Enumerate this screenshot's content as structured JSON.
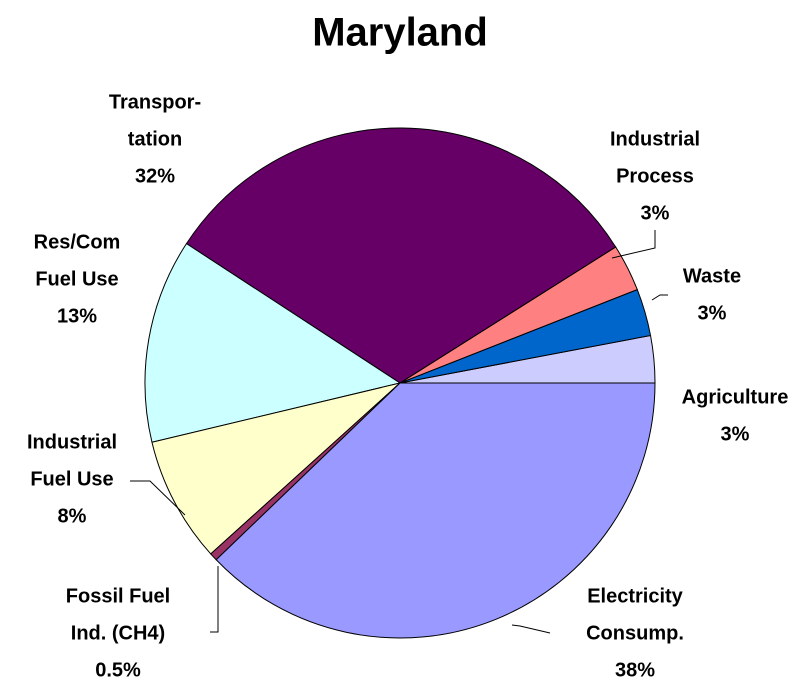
{
  "chart_data": {
    "type": "pie",
    "title": "Maryland",
    "categories": [
      [
        "Agriculture"
      ],
      [
        "Waste"
      ],
      [
        "Industrial",
        "Process"
      ],
      [
        "Transpor-",
        "tation"
      ],
      [
        "Res/Com",
        "Fuel Use"
      ],
      [
        "Industrial",
        "Fuel Use"
      ],
      [
        "Fossil Fuel",
        "Ind. (CH4)"
      ],
      [
        "Electricity",
        "Consump."
      ]
    ],
    "values": [
      3,
      3,
      3,
      32,
      13,
      8,
      0.5,
      38
    ],
    "value_labels": [
      "3%",
      "3%",
      "3%",
      "32%",
      "13%",
      "8%",
      "0.5%",
      "38%"
    ],
    "colors": [
      "#ccccff",
      "#0066cc",
      "#ff8080",
      "#660066",
      "#ccffff",
      "#ffffcc",
      "#993366",
      "#9999ff"
    ]
  }
}
